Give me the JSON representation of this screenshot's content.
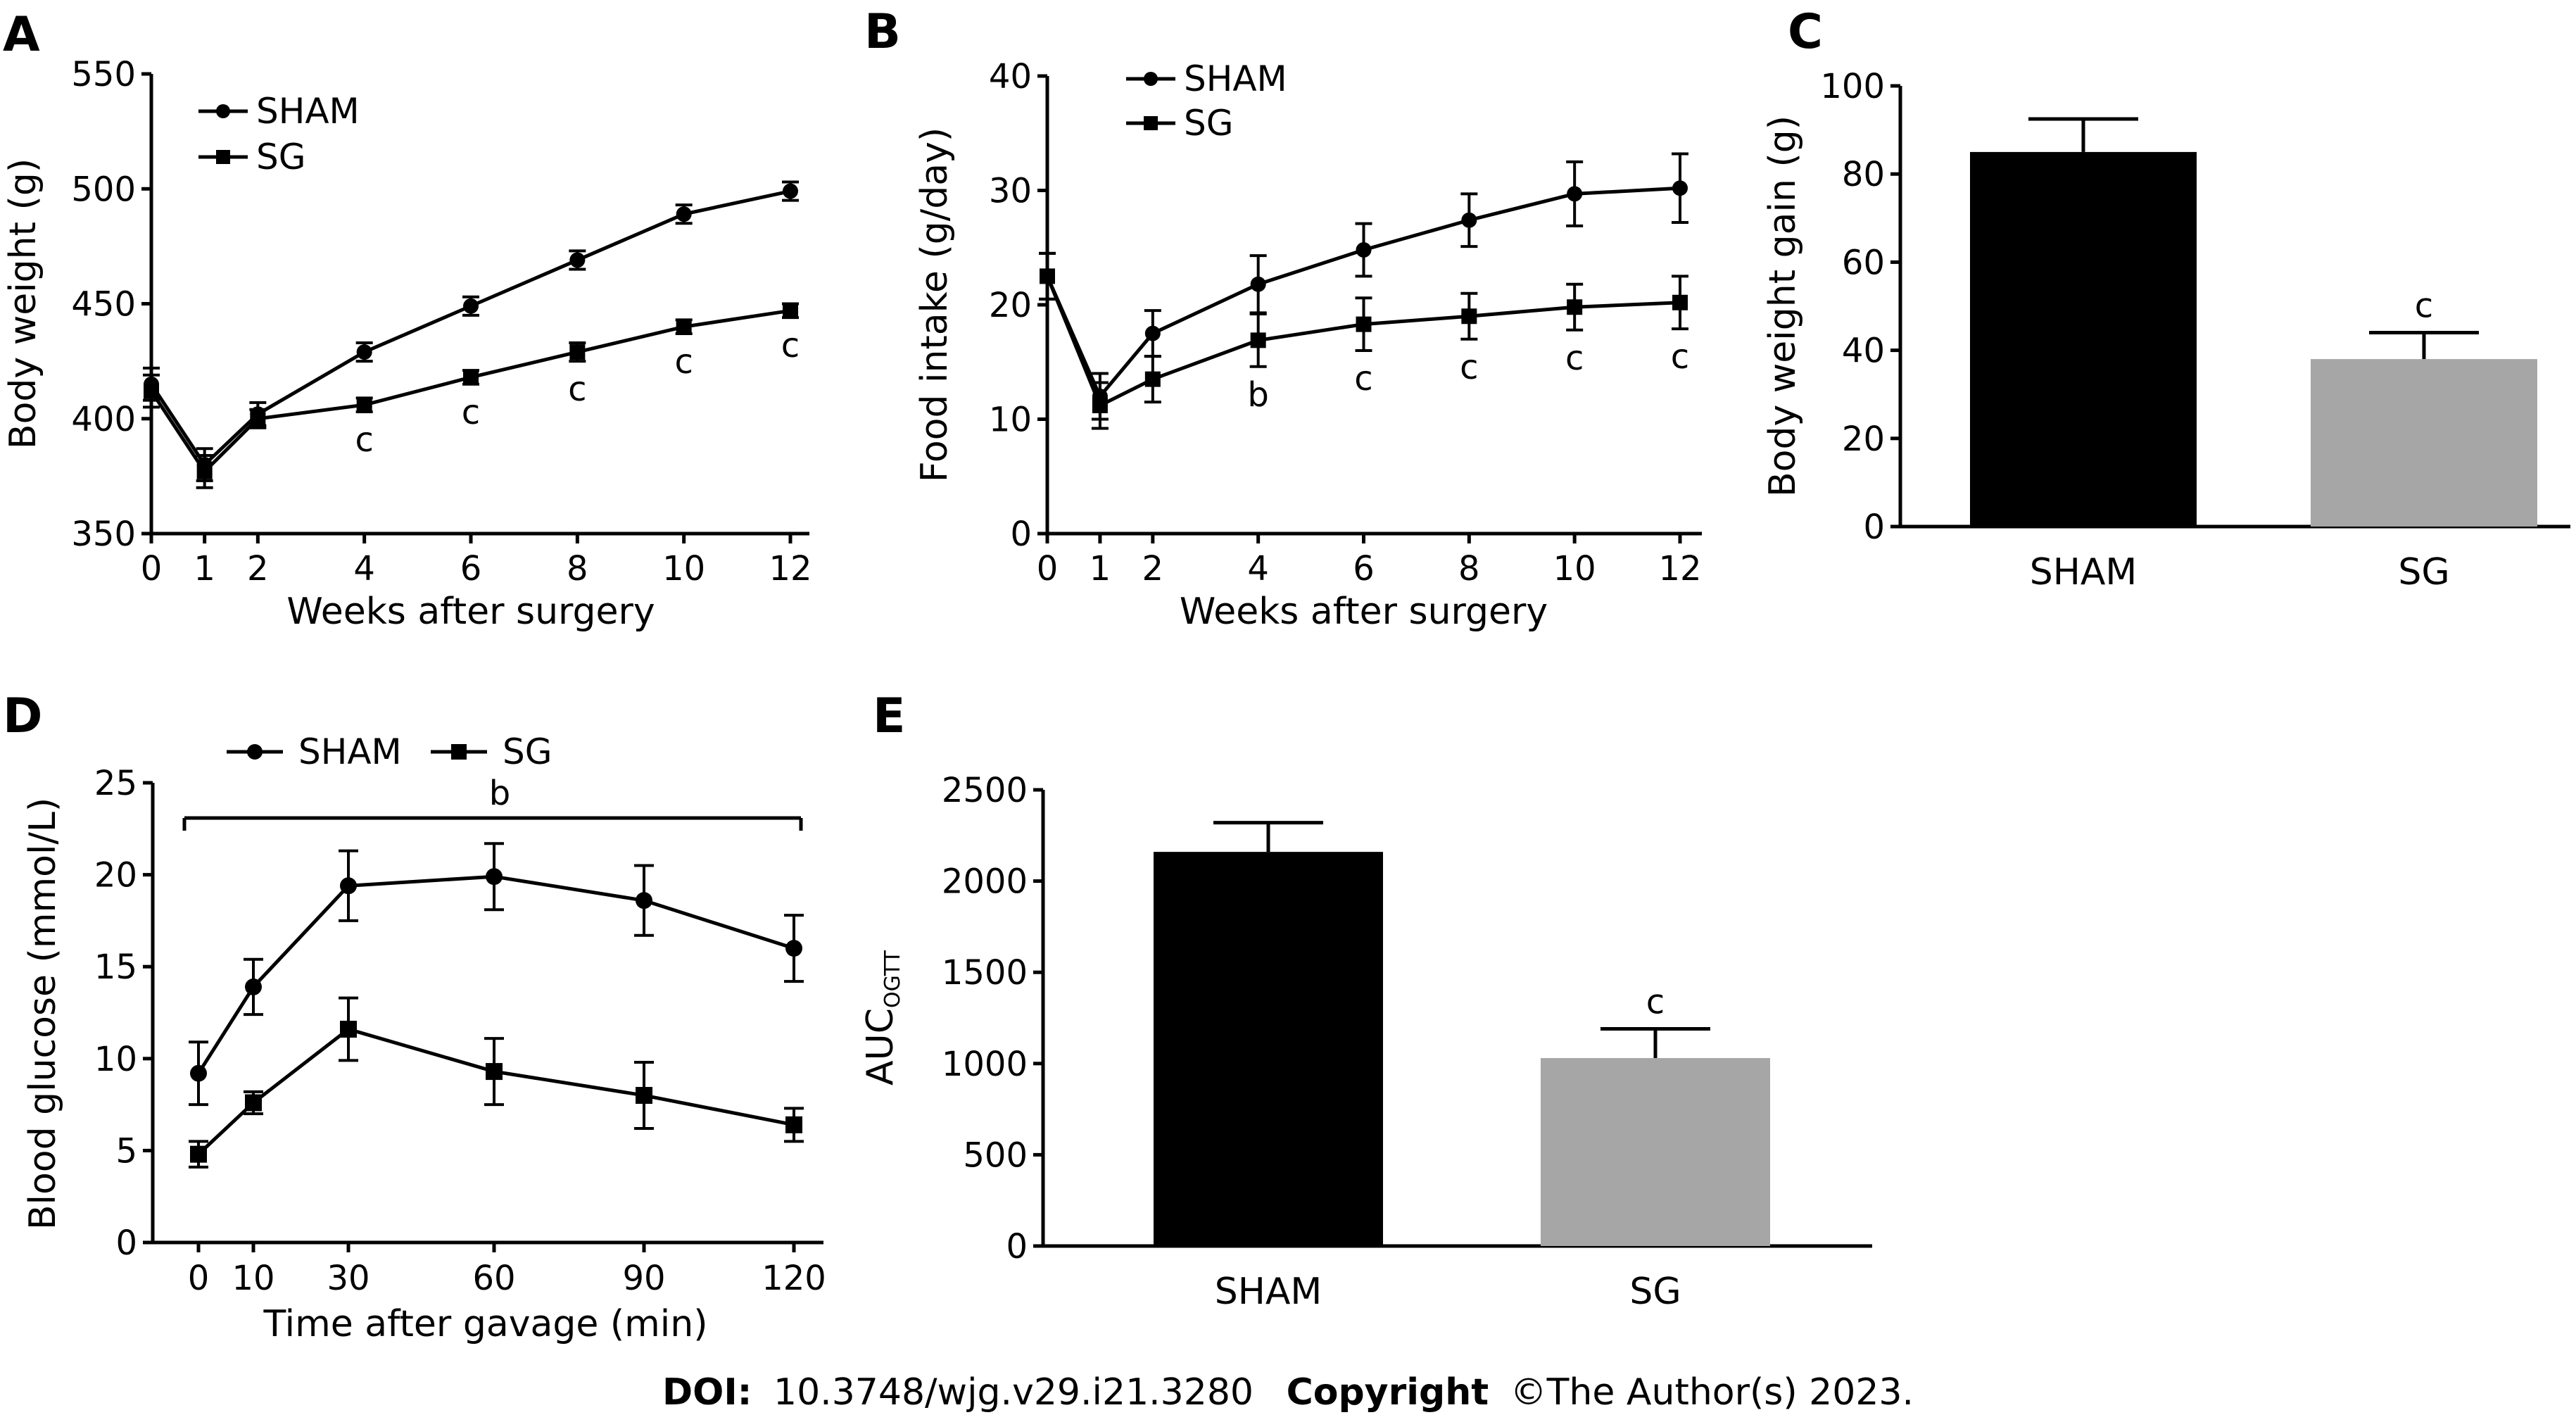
{
  "chart_data": [
    {
      "panel": "A",
      "type": "line",
      "x": [
        0,
        1,
        2,
        4,
        6,
        8,
        10,
        12
      ],
      "xlabel": "Weeks after surgery",
      "ylabel": "Body weight (g)",
      "ylim": [
        350,
        550
      ],
      "yticks": [
        350,
        400,
        450,
        500,
        550
      ],
      "xticks": [
        0,
        1,
        2,
        4,
        6,
        8,
        10,
        12
      ],
      "legend_placement": "top-left",
      "grid": false,
      "series": [
        {
          "name": "SHAM",
          "marker": "circle",
          "values": [
            415,
            380,
            402,
            429,
            449,
            469,
            489,
            499
          ],
          "errors": [
            7,
            7,
            5,
            4,
            4,
            4,
            4,
            4
          ]
        },
        {
          "name": "SG",
          "marker": "square",
          "values": [
            412,
            377,
            400,
            406,
            418,
            429,
            440,
            447
          ],
          "errors": [
            7,
            7,
            4,
            3,
            3,
            4,
            3,
            3
          ]
        }
      ],
      "annotations": [
        {
          "x": 4,
          "text": "c"
        },
        {
          "x": 6,
          "text": "c"
        },
        {
          "x": 8,
          "text": "c"
        },
        {
          "x": 10,
          "text": "c"
        },
        {
          "x": 12,
          "text": "c"
        }
      ]
    },
    {
      "panel": "B",
      "type": "line",
      "x": [
        0,
        1,
        2,
        4,
        6,
        8,
        10,
        12
      ],
      "xlabel": "Weeks after surgery",
      "ylabel": "Food intake (g/day)",
      "ylim": [
        0,
        40
      ],
      "yticks": [
        0,
        10,
        20,
        30,
        40
      ],
      "xticks": [
        0,
        1,
        2,
        4,
        6,
        8,
        10,
        12
      ],
      "legend_placement": "top-left",
      "grid": false,
      "series": [
        {
          "name": "SHAM",
          "marker": "circle",
          "values": [
            22.5,
            12.0,
            17.5,
            21.8,
            24.8,
            27.4,
            29.7,
            30.2
          ],
          "errors": [
            2.0,
            2.0,
            2.0,
            2.5,
            2.3,
            2.3,
            2.8,
            3.0
          ]
        },
        {
          "name": "SG",
          "marker": "square",
          "values": [
            22.5,
            11.2,
            13.5,
            16.9,
            18.3,
            19.0,
            19.8,
            20.2
          ],
          "errors": [
            2.0,
            2.0,
            2.0,
            2.3,
            2.3,
            2.0,
            2.0,
            2.3
          ]
        }
      ],
      "annotations": [
        {
          "x": 4,
          "text": "b"
        },
        {
          "x": 6,
          "text": "c"
        },
        {
          "x": 8,
          "text": "c"
        },
        {
          "x": 10,
          "text": "c"
        },
        {
          "x": 12,
          "text": "c"
        }
      ]
    },
    {
      "panel": "C",
      "type": "bar",
      "categories": [
        "SHAM",
        "SG"
      ],
      "values": [
        85,
        38
      ],
      "errors": [
        7.5,
        6
      ],
      "colors": [
        "#000000",
        "#a6a6a6"
      ],
      "ylabel": "Body weight gain (g)",
      "ylim": [
        0,
        100
      ],
      "yticks": [
        0,
        20,
        40,
        60,
        80,
        100
      ],
      "annotations": [
        {
          "category": "SG",
          "text": "c"
        }
      ]
    },
    {
      "panel": "D",
      "type": "line",
      "x": [
        0,
        10,
        30,
        60,
        90,
        120
      ],
      "xlabel": "Time after gavage (min)",
      "ylabel": "Blood glucose (mmol/L)",
      "ylim": [
        0,
        25
      ],
      "yticks": [
        0,
        5,
        10,
        15,
        20,
        25
      ],
      "xticks": [
        0,
        10,
        30,
        60,
        90,
        120
      ],
      "legend_placement": "top",
      "grid": false,
      "series": [
        {
          "name": "SHAM",
          "marker": "circle",
          "values": [
            9.2,
            13.9,
            19.4,
            19.9,
            18.6,
            16.0
          ],
          "errors": [
            1.7,
            1.5,
            1.9,
            1.8,
            1.9,
            1.8
          ]
        },
        {
          "name": "SG",
          "marker": "square",
          "values": [
            4.8,
            7.6,
            11.6,
            9.3,
            8.0,
            6.4
          ],
          "errors": [
            0.7,
            0.6,
            1.7,
            1.8,
            1.8,
            0.9
          ]
        }
      ],
      "bracket_label": "b"
    },
    {
      "panel": "E",
      "type": "bar",
      "categories": [
        "SHAM",
        "SG"
      ],
      "values": [
        2160,
        1030
      ],
      "errors": [
        160,
        160
      ],
      "colors": [
        "#000000",
        "#a6a6a6"
      ],
      "ylabel": "AUC",
      "ylabel_sub": "OGTT",
      "ylim": [
        0,
        2500
      ],
      "yticks": [
        0,
        500,
        1000,
        1500,
        2000,
        2500
      ],
      "annotations": [
        {
          "category": "SG",
          "text": "c"
        }
      ]
    }
  ],
  "footer": {
    "doi_label": "DOI:",
    "doi_value": "10.3748/wjg.v29.i21.3280",
    "copyright_label": "Copyright",
    "copyright_value": "©The Author(s) 2023."
  }
}
